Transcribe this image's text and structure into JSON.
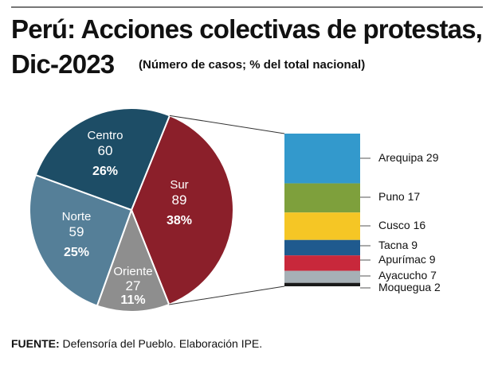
{
  "chart_data": {
    "type": "pie",
    "title": "Perú: Acciones colectivas de protestas,",
    "title_line2": "Dic-2023",
    "subtitle": "(Número de casos; % del total nacional)",
    "pie": [
      {
        "name": "Sur",
        "value": 89,
        "percent": "38%",
        "color": "#8b1f2a"
      },
      {
        "name": "Oriente",
        "value": 27,
        "percent": "11%",
        "color": "#8e8e8e"
      },
      {
        "name": "Norte",
        "value": 59,
        "percent": "25%",
        "color": "#557f98"
      },
      {
        "name": "Centro",
        "value": 60,
        "percent": "26%",
        "color": "#1d4d66"
      }
    ],
    "breakdown_of": "Sur",
    "bar": [
      {
        "name": "Arequipa",
        "value": 29,
        "label": "Arequipa 29",
        "color": "#3399cc"
      },
      {
        "name": "Puno",
        "value": 17,
        "label": "Puno 17",
        "color": "#7ea03c"
      },
      {
        "name": "Cusco",
        "value": 16,
        "label": "Cusco 16",
        "color": "#f5c625"
      },
      {
        "name": "Tacna",
        "value": 9,
        "label": "Tacna 9",
        "color": "#1f5a8e"
      },
      {
        "name": "Apurímac",
        "value": 9,
        "label": "Apurímac 9",
        "color": "#c8283b"
      },
      {
        "name": "Ayacucho",
        "value": 7,
        "label": "Ayacucho 7",
        "color": "#a6b0b6"
      },
      {
        "name": "Moquegua",
        "value": 2,
        "label": "Moquegua 2",
        "color": "#1a1a1a"
      }
    ]
  },
  "source": {
    "label": "FUENTE:",
    "text": " Defensoría del Pueblo. Elaboración IPE."
  }
}
